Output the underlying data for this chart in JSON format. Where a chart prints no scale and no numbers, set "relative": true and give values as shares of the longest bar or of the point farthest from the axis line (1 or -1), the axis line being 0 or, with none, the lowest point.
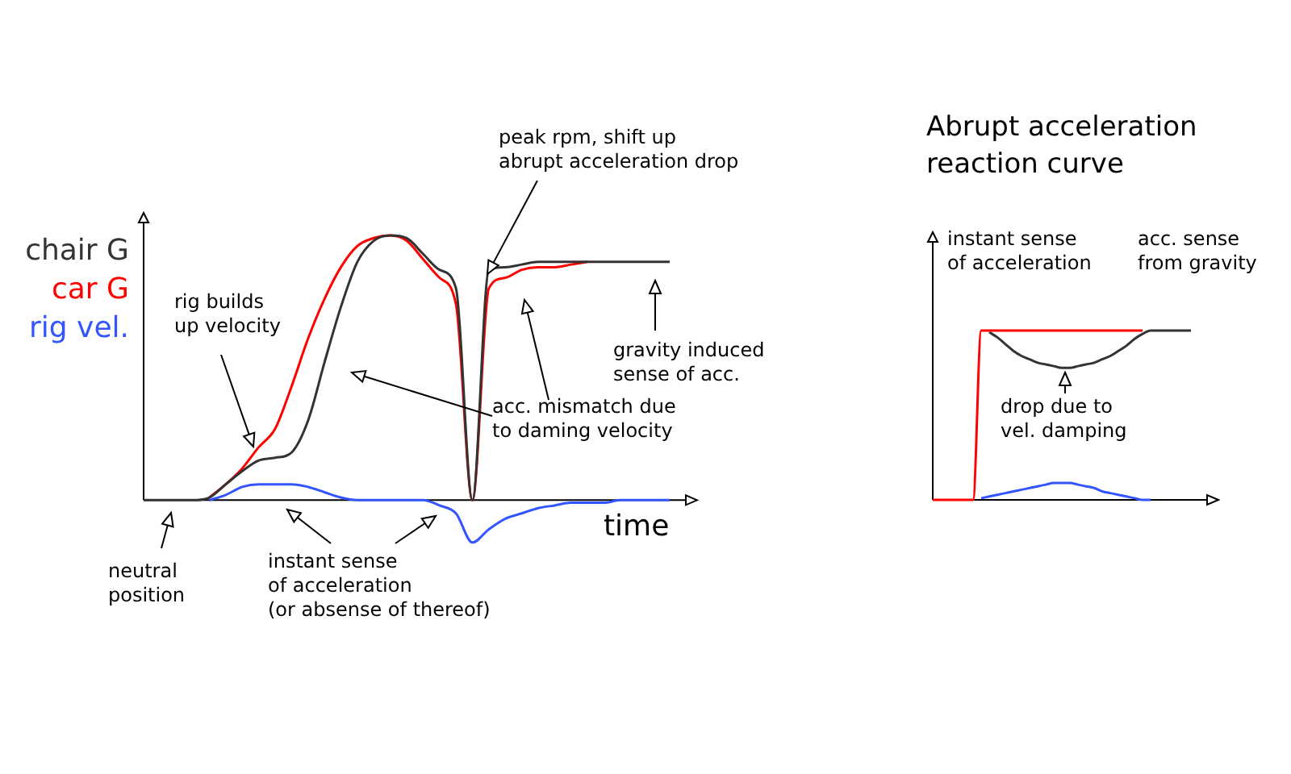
{
  "chart_data": [
    {
      "type": "line",
      "relative": true,
      "legend": "left",
      "xlabel": "time",
      "categories": [
        null,
        null,
        null,
        null,
        null,
        null,
        null,
        null,
        null,
        null,
        null,
        null,
        null,
        null,
        null,
        null,
        null,
        null,
        null,
        null,
        null,
        null,
        null,
        null,
        null,
        null,
        null,
        null,
        null,
        null,
        null,
        null,
        null
      ],
      "series": [
        {
          "name": "chair G",
          "color": "#333333",
          "values": [
            0,
            0,
            0,
            0,
            0.01,
            0.06,
            0.11,
            0.15,
            0.16,
            0.18,
            0.3,
            0.52,
            0.73,
            0.9,
            0.98,
            1,
            0.99,
            0.93,
            0.87,
            0.8,
            0,
            0.87,
            0.88,
            0.89,
            0.9,
            0.9,
            0.9,
            0.9,
            0.9,
            0.9,
            0.9,
            0.9,
            0.9
          ]
        },
        {
          "name": "car G",
          "color": "#ff0000",
          "values": [
            null,
            null,
            null,
            null,
            0.01,
            0.06,
            0.12,
            0.2,
            0.27,
            0.43,
            0.61,
            0.76,
            0.88,
            0.96,
            0.99,
            1,
            0.98,
            0.91,
            0.84,
            0.74,
            0,
            0.8,
            0.84,
            0.87,
            0.88,
            0.88,
            0.89,
            0.9,
            null,
            null,
            null,
            null,
            null
          ]
        },
        {
          "name": "rig vel.",
          "color": "#3355ff",
          "values": [
            null,
            null,
            null,
            null,
            0,
            0.02,
            0.05,
            0.06,
            0.06,
            0.06,
            0.05,
            0.03,
            0.01,
            0,
            0,
            0,
            0,
            0,
            -0.02,
            -0.05,
            -0.16,
            -0.11,
            -0.07,
            -0.05,
            -0.03,
            -0.02,
            -0.01,
            -0.01,
            -0.01,
            0,
            0,
            0,
            0
          ]
        }
      ],
      "annotations": [
        "rig builds\nup velocity",
        "acc. mismatch due\nto daming velocity",
        "peak rpm, shift up\nabrupt acceleration drop",
        "gravity induced\nsense of acc.",
        "neutral\nposition",
        "instant sense\nof acceleration\n(or absense of thereof)"
      ]
    },
    {
      "type": "line",
      "relative": true,
      "title": "Abrupt acceleration reaction curve",
      "categories": [
        null,
        null,
        null,
        null,
        null,
        null,
        null,
        null,
        null,
        null,
        null,
        null,
        null,
        null,
        null,
        null,
        null,
        null,
        null,
        null,
        null,
        null,
        null,
        null,
        null,
        null,
        null,
        null,
        null,
        null,
        null,
        null,
        null
      ],
      "series": [
        {
          "color": "#ff0000",
          "values": [
            0,
            0,
            0,
            0,
            0,
            0,
            1,
            1,
            1,
            1,
            1,
            1,
            1,
            1,
            1,
            1,
            1,
            1,
            1,
            1,
            1,
            1,
            1,
            1,
            1,
            1,
            1,
            null,
            null,
            null,
            null,
            null,
            null
          ]
        },
        {
          "color": "#333333",
          "values": [
            null,
            null,
            null,
            null,
            null,
            null,
            null,
            0.99,
            0.96,
            0.92,
            0.88,
            0.85,
            0.83,
            0.81,
            0.8,
            0.79,
            0.78,
            0.78,
            0.79,
            0.8,
            0.81,
            0.83,
            0.85,
            0.88,
            0.91,
            0.95,
            0.98,
            1,
            1,
            1,
            1,
            1,
            1
          ]
        },
        {
          "color": "#3355ff",
          "values": [
            null,
            null,
            null,
            null,
            null,
            null,
            0.01,
            0.02,
            0.03,
            0.04,
            0.05,
            0.06,
            0.07,
            0.08,
            0.09,
            0.1,
            0.1,
            0.1,
            0.09,
            0.08,
            0.07,
            0.05,
            0.04,
            0.03,
            0.02,
            0.01,
            0,
            0,
            null,
            null,
            null,
            null,
            null
          ]
        }
      ],
      "annotations": [
        "instant sense\nof acceleration",
        "acc. sense\nfrom gravity",
        "drop due to\nvel. damping"
      ]
    }
  ]
}
